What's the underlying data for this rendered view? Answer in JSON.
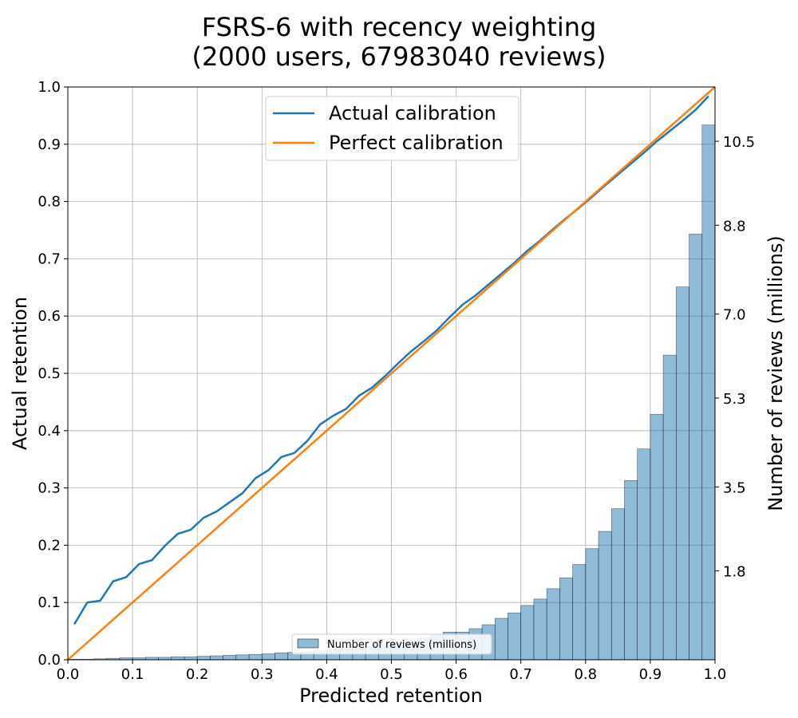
{
  "chart_data": {
    "type": "line+bar",
    "title": "FSRS-6 with recency weighting",
    "subtitle": "(2000 users, 67983040 reviews)",
    "xlabel": "Predicted retention",
    "ylabel": "Actual retention",
    "y2label": "Number of reviews (millions)",
    "xlim": [
      0,
      1
    ],
    "ylim": [
      0,
      1
    ],
    "y2lim": [
      0,
      11.6
    ],
    "grid": true,
    "x_ticks": [
      "0.0",
      "0.1",
      "0.2",
      "0.3",
      "0.4",
      "0.5",
      "0.6",
      "0.7",
      "0.8",
      "0.9",
      "1.0"
    ],
    "y_ticks": [
      "0.0",
      "0.1",
      "0.2",
      "0.3",
      "0.4",
      "0.5",
      "0.6",
      "0.7",
      "0.8",
      "0.9",
      "1.0"
    ],
    "y2_ticks": [
      "1.8",
      "3.5",
      "5.3",
      "7.0",
      "8.8",
      "10.5"
    ],
    "series": [
      {
        "name": "Actual calibration",
        "color": "#1f77b4",
        "x": [
          0.01,
          0.03,
          0.05,
          0.07,
          0.09,
          0.11,
          0.13,
          0.15,
          0.17,
          0.19,
          0.21,
          0.23,
          0.25,
          0.27,
          0.29,
          0.31,
          0.33,
          0.35,
          0.37,
          0.39,
          0.41,
          0.43,
          0.45,
          0.47,
          0.49,
          0.51,
          0.53,
          0.55,
          0.57,
          0.59,
          0.61,
          0.63,
          0.65,
          0.67,
          0.69,
          0.71,
          0.73,
          0.75,
          0.77,
          0.79,
          0.81,
          0.83,
          0.85,
          0.87,
          0.89,
          0.91,
          0.93,
          0.95,
          0.97,
          0.99
        ],
        "y": [
          0.062,
          0.1,
          0.103,
          0.137,
          0.144,
          0.167,
          0.174,
          0.199,
          0.22,
          0.227,
          0.248,
          0.259,
          0.275,
          0.291,
          0.317,
          0.331,
          0.354,
          0.361,
          0.382,
          0.411,
          0.426,
          0.438,
          0.461,
          0.475,
          0.495,
          0.517,
          0.538,
          0.556,
          0.575,
          0.598,
          0.62,
          0.636,
          0.655,
          0.674,
          0.693,
          0.714,
          0.732,
          0.752,
          0.771,
          0.789,
          0.808,
          0.828,
          0.847,
          0.866,
          0.885,
          0.905,
          0.923,
          0.941,
          0.96,
          0.984
        ]
      },
      {
        "name": "Perfect calibration",
        "color": "#ff7f0e",
        "x": [
          0,
          1
        ],
        "y": [
          0,
          1
        ]
      }
    ],
    "bars": {
      "name": "Number of reviews (millions)",
      "color": "#1f77b4",
      "alpha": 0.5,
      "bin_width": 0.02,
      "x": [
        0.01,
        0.03,
        0.05,
        0.07,
        0.09,
        0.11,
        0.13,
        0.15,
        0.17,
        0.19,
        0.21,
        0.23,
        0.25,
        0.27,
        0.29,
        0.31,
        0.33,
        0.35,
        0.37,
        0.39,
        0.41,
        0.43,
        0.45,
        0.47,
        0.49,
        0.51,
        0.53,
        0.55,
        0.57,
        0.59,
        0.61,
        0.63,
        0.65,
        0.67,
        0.69,
        0.71,
        0.73,
        0.75,
        0.77,
        0.79,
        0.81,
        0.83,
        0.85,
        0.87,
        0.89,
        0.91,
        0.93,
        0.95,
        0.97,
        0.99
      ],
      "values": [
        0.01,
        0.01,
        0.02,
        0.03,
        0.04,
        0.04,
        0.05,
        0.05,
        0.06,
        0.06,
        0.07,
        0.08,
        0.09,
        0.1,
        0.11,
        0.12,
        0.14,
        0.15,
        0.16,
        0.18,
        0.2,
        0.22,
        0.24,
        0.27,
        0.3,
        0.34,
        0.38,
        0.44,
        0.5,
        0.56,
        0.56,
        0.63,
        0.71,
        0.84,
        0.95,
        1.1,
        1.23,
        1.44,
        1.66,
        1.93,
        2.25,
        2.6,
        3.06,
        3.63,
        4.27,
        4.97,
        6.17,
        7.55,
        8.62,
        10.83
      ]
    },
    "legend_main": {
      "location": "top-center",
      "entries": [
        "Actual calibration",
        "Perfect calibration"
      ]
    },
    "legend_bars": {
      "location": "bottom-center",
      "entries": [
        "Number of reviews (millions)"
      ]
    }
  }
}
